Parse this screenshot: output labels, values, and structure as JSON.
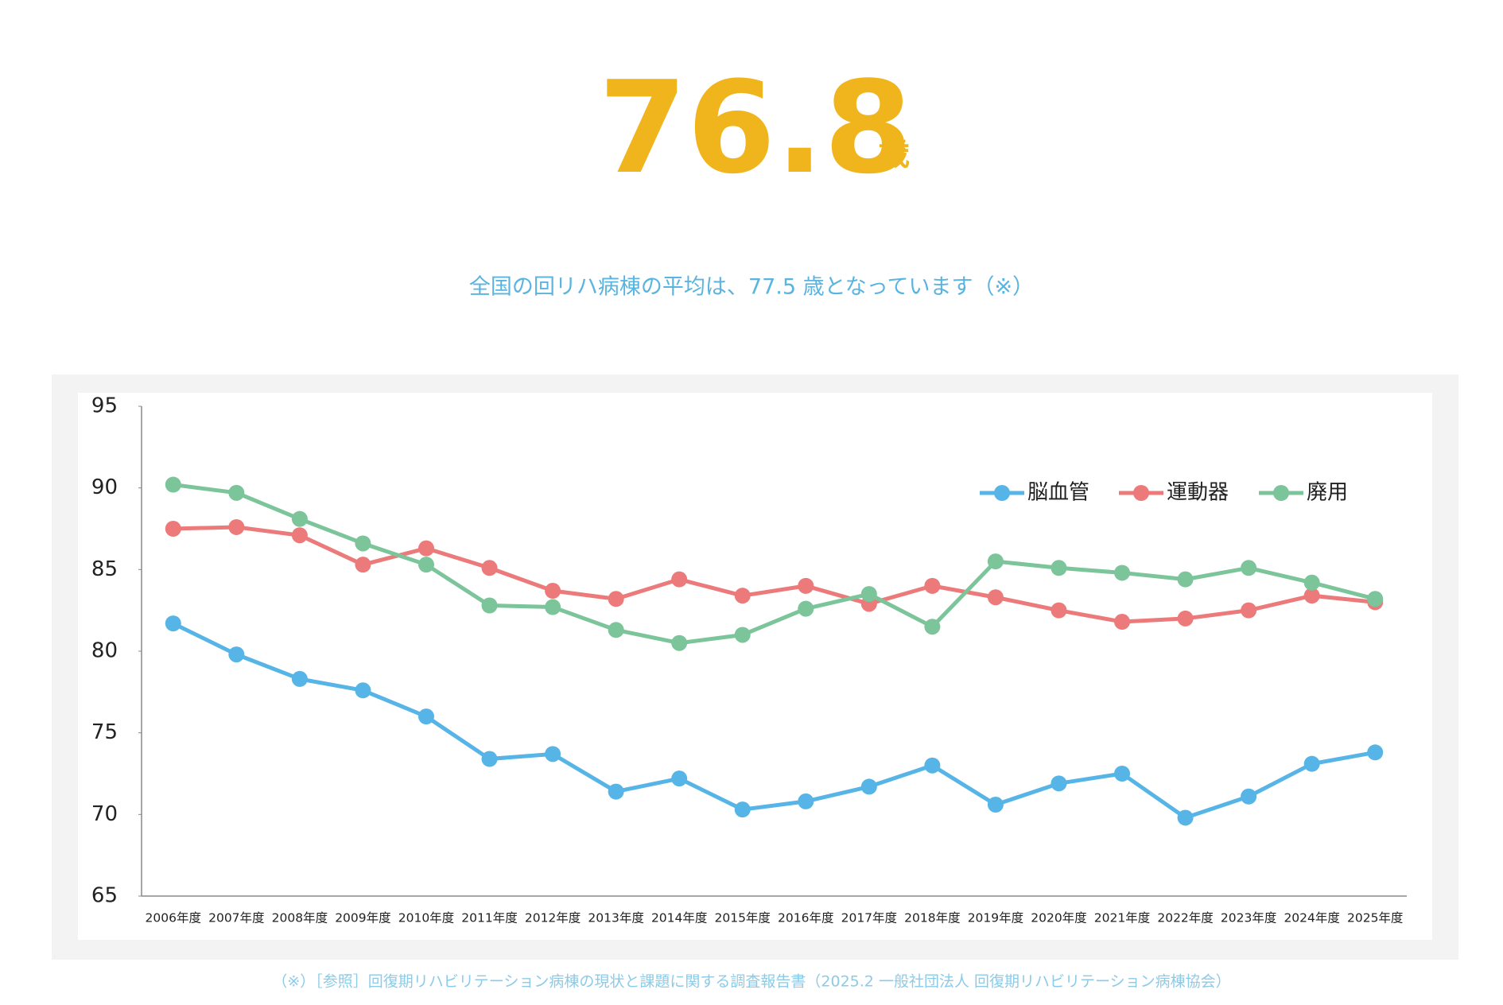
{
  "header": {
    "value": "76.8",
    "unit": "歳",
    "subtitle": "全国の回リハ病棟の平均は、77.5 歳となっています（※）"
  },
  "chart_data": {
    "type": "line",
    "categories": [
      "2006年度",
      "2007年度",
      "2008年度",
      "2009年度",
      "2010年度",
      "2011年度",
      "2012年度",
      "2013年度",
      "2014年度",
      "2015年度",
      "2016年度",
      "2017年度",
      "2018年度",
      "2019年度",
      "2020年度",
      "2021年度",
      "2022年度",
      "2023年度",
      "2024年度",
      "2025年度"
    ],
    "series": [
      {
        "name": "脳血管",
        "color": "#56b4e6",
        "values": [
          81.7,
          79.8,
          78.3,
          77.6,
          76.0,
          73.4,
          73.7,
          71.4,
          72.2,
          70.3,
          70.8,
          71.7,
          73.0,
          70.6,
          71.9,
          72.5,
          69.8,
          71.1,
          73.1,
          73.8
        ]
      },
      {
        "name": "運動器",
        "color": "#ec7a7a",
        "values": [
          87.5,
          87.6,
          87.1,
          85.3,
          86.3,
          85.1,
          83.7,
          83.2,
          84.4,
          83.4,
          84.0,
          82.9,
          84.0,
          83.3,
          82.5,
          81.8,
          82.0,
          82.5,
          83.4,
          83.0
        ]
      },
      {
        "name": "廃用",
        "color": "#7cc49a",
        "values": [
          90.2,
          89.7,
          88.1,
          86.6,
          85.3,
          82.8,
          82.7,
          81.3,
          80.5,
          81.0,
          82.6,
          83.5,
          81.5,
          85.5,
          85.1,
          84.8,
          84.4,
          85.1,
          84.2,
          83.2
        ]
      }
    ],
    "ylim": [
      65,
      95
    ],
    "yticks": [
      65,
      70,
      75,
      80,
      85,
      90,
      95
    ],
    "legend": "upper right"
  },
  "footnote": "（※）［参照］回復期リハビリテーション病棟の現状と課題に関する調査報告書（2025.2 一般社団法人 回復期リハビリテーション病棟協会）"
}
